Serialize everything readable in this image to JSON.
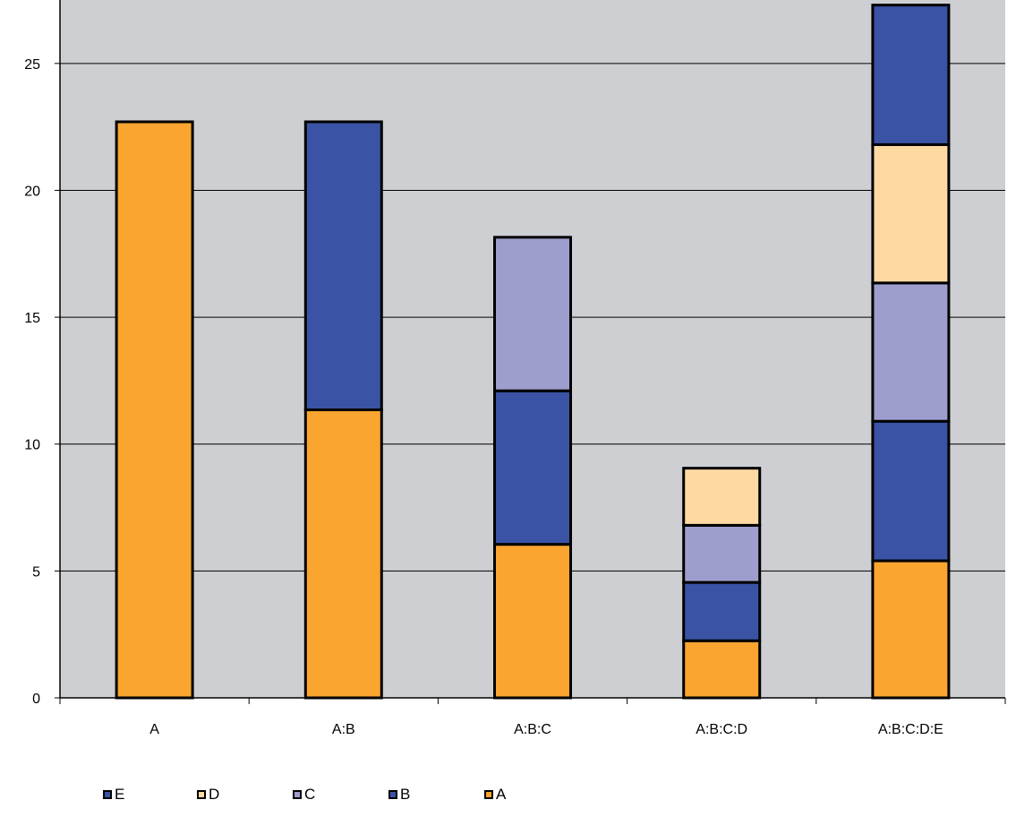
{
  "chart_data": {
    "type": "bar",
    "stacked": true,
    "title": "",
    "xlabel": "",
    "ylabel": "",
    "categories": [
      "A",
      "A:B",
      "A:B:C",
      "A:B:C:D",
      "A:B:C:D:E"
    ],
    "ylim": [
      0,
      27.5
    ],
    "yticks": [
      0,
      5,
      10,
      15,
      20,
      25
    ],
    "grid": true,
    "legend_position": "bottom",
    "series": [
      {
        "name": "A",
        "color": "#F9A52F",
        "values": [
          22.7,
          11.35,
          6.05,
          2.25,
          5.4
        ]
      },
      {
        "name": "B",
        "color": "#3A53A4",
        "values": [
          0,
          11.35,
          6.05,
          2.3,
          5.5
        ]
      },
      {
        "name": "C",
        "color": "#9E9ECE",
        "values": [
          0,
          0,
          6.05,
          2.25,
          5.45
        ]
      },
      {
        "name": "D",
        "color": "#FED9A2",
        "values": [
          0,
          0,
          0,
          2.25,
          5.45
        ]
      },
      {
        "name": "E",
        "color": "#3A53A4",
        "values": [
          0,
          0,
          0,
          0,
          5.5
        ]
      }
    ],
    "legend_order": [
      "E",
      "D",
      "C",
      "B",
      "A"
    ],
    "plot_background": "#CECFD2"
  }
}
